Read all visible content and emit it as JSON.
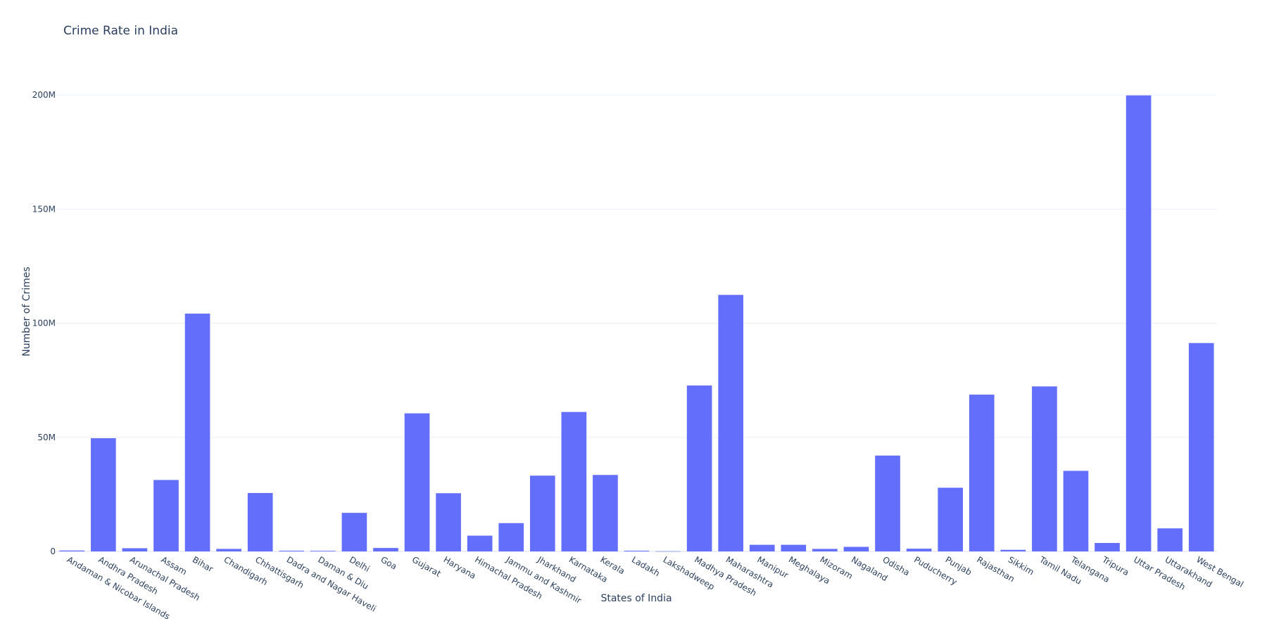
{
  "chart_data": {
    "type": "bar",
    "title": "Crime Rate in India",
    "xlabel": "States of India",
    "ylabel": "Number of Crimes",
    "ylim": [
      0,
      200000000
    ],
    "yticks": [
      {
        "value": 0,
        "label": "0"
      },
      {
        "value": 50000000,
        "label": "50M"
      },
      {
        "value": 100000000,
        "label": "100M"
      },
      {
        "value": 150000000,
        "label": "150M"
      },
      {
        "value": 200000000,
        "label": "200M"
      }
    ],
    "grid": true,
    "bar_color": "#636efa",
    "categories": [
      "Andaman & Nicobar Islands",
      "Andhra Pradesh",
      "Arunachal Pradesh",
      "Assam",
      "Bihar",
      "Chandigarh",
      "Chhattisgarh",
      "Dadra and Nagar Haveli",
      "Daman & Diu",
      "Delhi",
      "Goa",
      "Gujarat",
      "Haryana",
      "Himachal Pradesh",
      "Jammu and Kashmir",
      "Jharkhand",
      "Karnataka",
      "Kerala",
      "Ladakh",
      "Lakshadweep",
      "Madhya Pradesh",
      "Maharashtra",
      "Manipur",
      "Meghalaya",
      "Mizoram",
      "Nagaland",
      "Odisha",
      "Puducherry",
      "Punjab",
      "Rajasthan",
      "Sikkim",
      "Tamil Nadu",
      "Telangana",
      "Tripura",
      "Uttar Pradesh",
      "Uttarakhand",
      "West Bengal"
    ],
    "values": [
      400000,
      49600000,
      1400000,
      31300000,
      104200000,
      1100000,
      25600000,
      300000,
      250000,
      16900000,
      1500000,
      60500000,
      25500000,
      6900000,
      12400000,
      33200000,
      61100000,
      33500000,
      300000,
      70000,
      72700000,
      112400000,
      2900000,
      2900000,
      1100000,
      2000000,
      42000000,
      1200000,
      27900000,
      68700000,
      700000,
      72300000,
      35300000,
      3700000,
      199800000,
      10100000,
      91300000
    ]
  }
}
